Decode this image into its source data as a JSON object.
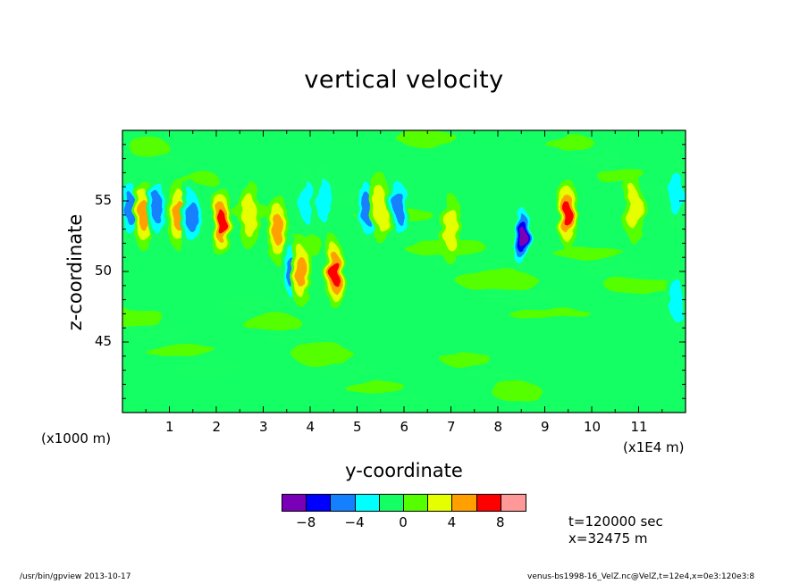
{
  "colors": {
    "levels": [
      "#7a00b8",
      "#0000ff",
      "#1480ff",
      "#00ffff",
      "#14ff64",
      "#55ff00",
      "#e6ff00",
      "#ffa000",
      "#ff0000",
      "#ff9898"
    ],
    "background": "#ffffff"
  },
  "footer": {
    "left": "/usr/bin/gpview  2013-10-17",
    "right": "venus-bs1998-16_VelZ.nc@VelZ,t=12e4,x=0e3:120e3:8"
  },
  "chart_data": {
    "type": "heatmap",
    "title": "vertical velocity",
    "xlabel": "y-coordinate",
    "ylabel": "z-coordinate",
    "x_scale_note": "(x1000 m)",
    "x_unit_note": "(x1E4 m)",
    "x_ticks": [
      "1",
      "2",
      "3",
      "4",
      "5",
      "6",
      "7",
      "8",
      "9",
      "10",
      "11"
    ],
    "y_ticks": [
      "45",
      "50",
      "55"
    ],
    "xlim": [
      0,
      12
    ],
    "ylim": [
      40,
      60
    ],
    "colorbar": {
      "levels": [
        -10,
        -8,
        -6,
        -4,
        -2,
        0,
        2,
        4,
        6,
        8,
        10
      ],
      "tick_labels": [
        "-8",
        "-4",
        "0",
        "4",
        "8"
      ]
    },
    "annotations": {
      "time": "t=120000 sec",
      "position": "x=32475 m"
    },
    "features": [
      {
        "y": 0.15,
        "z": 54.5,
        "value": -5
      },
      {
        "y": 0.45,
        "z": 54.0,
        "value": 5
      },
      {
        "y": 0.75,
        "z": 54.5,
        "value": -5
      },
      {
        "y": 1.2,
        "z": 54.0,
        "value": 6
      },
      {
        "y": 1.45,
        "z": 54.0,
        "value": -5
      },
      {
        "y": 2.1,
        "z": 53.5,
        "value": 7
      },
      {
        "y": 2.7,
        "z": 54.0,
        "value": 4
      },
      {
        "y": 3.3,
        "z": 53.0,
        "value": 6
      },
      {
        "y": 3.6,
        "z": 50.0,
        "value": -5
      },
      {
        "y": 3.8,
        "z": 50.0,
        "value": 6
      },
      {
        "y": 3.9,
        "z": 55.0,
        "value": -4
      },
      {
        "y": 4.3,
        "z": 55.0,
        "value": -4
      },
      {
        "y": 4.5,
        "z": 50.0,
        "value": 7
      },
      {
        "y": 5.2,
        "z": 54.5,
        "value": -5
      },
      {
        "y": 5.5,
        "z": 54.5,
        "value": 4
      },
      {
        "y": 5.9,
        "z": 54.5,
        "value": -6
      },
      {
        "y": 7.0,
        "z": 53.0,
        "value": 4
      },
      {
        "y": 8.5,
        "z": 52.5,
        "value": -9
      },
      {
        "y": 9.5,
        "z": 54.0,
        "value": 7
      },
      {
        "y": 10.9,
        "z": 54.5,
        "value": 4
      },
      {
        "y": 11.8,
        "z": 55.5,
        "value": -4
      },
      {
        "y": 11.8,
        "z": 48.0,
        "value": -3
      }
    ]
  }
}
